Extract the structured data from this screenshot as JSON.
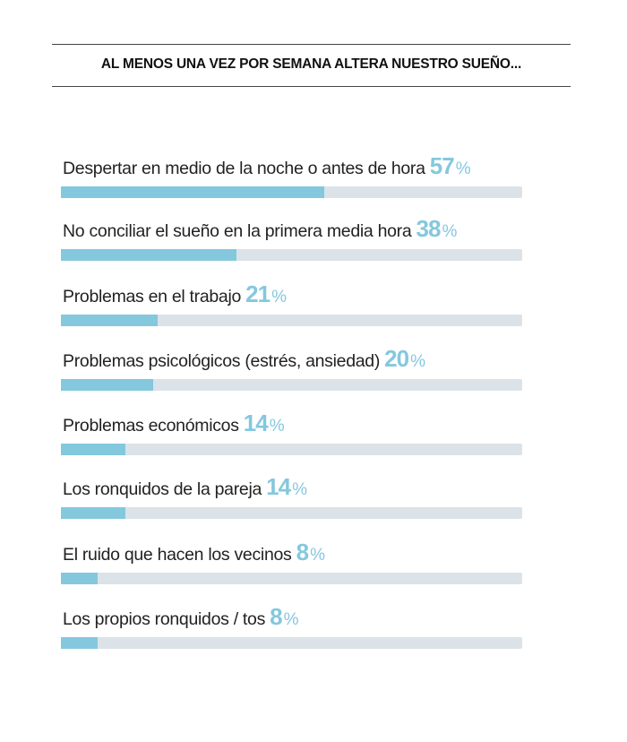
{
  "chart_data": {
    "type": "bar",
    "orientation": "horizontal",
    "title": "AL MENOS UNA VEZ POR SEMANA ALTERA NUESTRO SUEÑO...",
    "categories": [
      "Despertar en medio de la noche  o antes de hora",
      "No conciliar el sueño en la primera media hora",
      "Problemas en el trabajo",
      "Problemas psicológicos (estrés, ansiedad) ",
      "Problemas económicos",
      "Los ronquidos de la pareja",
      "El ruido que hacen los vecinos",
      "Los propios ronquidos / tos"
    ],
    "values": [
      57,
      38,
      21,
      20,
      14,
      14,
      8,
      8
    ],
    "value_suffix": "%",
    "xlim": [
      0,
      100
    ],
    "grid": false,
    "colors": {
      "fill": "#84c8de",
      "track": "#dbe3e8",
      "value_text": "#84c8de"
    }
  }
}
